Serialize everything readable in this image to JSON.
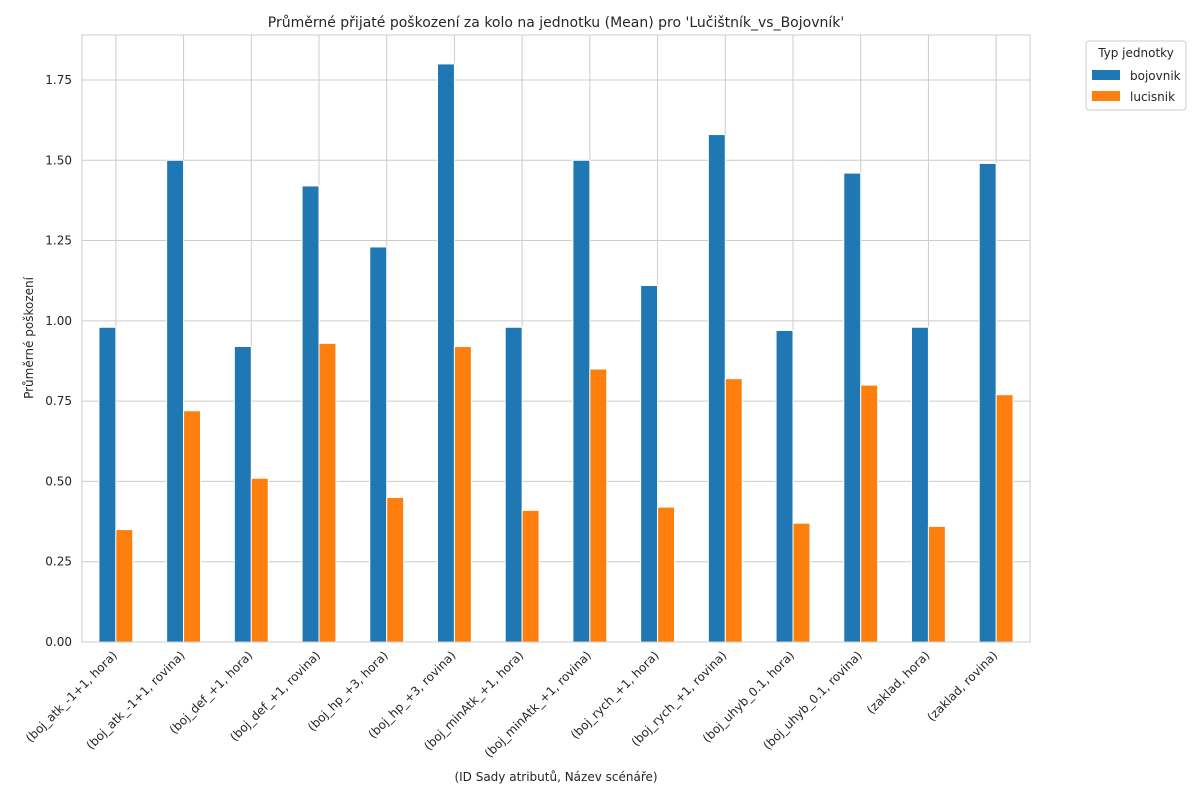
{
  "chart_data": {
    "type": "bar",
    "title": "Průměrné přijaté poškození za kolo na jednotku (Mean) pro 'Lučištník_vs_Bojovník'",
    "xlabel": "(ID Sady atributů, Název scénáře)",
    "ylabel": "Průměrné poškození",
    "ylim": [
      0,
      1.89
    ],
    "yticks": [
      0.0,
      0.25,
      0.5,
      0.75,
      1.0,
      1.25,
      1.5,
      1.75
    ],
    "ytick_labels": [
      "0.00",
      "0.25",
      "0.50",
      "0.75",
      "1.00",
      "1.25",
      "1.50",
      "1.75"
    ],
    "grid": true,
    "legend": {
      "title": "Typ jednotky",
      "placement": "top-right, outside plot"
    },
    "categories": [
      "(boj_atk_-1+1, hora)",
      "(boj_atk_-1+1, rovina)",
      "(boj_def_+1, hora)",
      "(boj_def_+1, rovina)",
      "(boj_hp_+3, hora)",
      "(boj_hp_+3, rovina)",
      "(boj_minAtk_+1, hora)",
      "(boj_minAtk_+1, rovina)",
      "(boj_rych_+1, hora)",
      "(boj_rych_+1, rovina)",
      "(boj_uhyb_0.1, hora)",
      "(boj_uhyb_0.1, rovina)",
      "(zaklad, hora)",
      "(zaklad, rovina)"
    ],
    "series": [
      {
        "name": "bojovnik",
        "color": "#1f77b4",
        "values": [
          0.98,
          1.5,
          0.92,
          1.42,
          1.23,
          1.8,
          0.98,
          1.5,
          1.11,
          1.58,
          0.97,
          1.46,
          0.98,
          1.49
        ]
      },
      {
        "name": "lucisnik",
        "color": "#ff7f0e",
        "values": [
          0.35,
          0.72,
          0.51,
          0.93,
          0.45,
          0.92,
          0.41,
          0.85,
          0.42,
          0.82,
          0.37,
          0.8,
          0.36,
          0.77
        ]
      }
    ]
  }
}
